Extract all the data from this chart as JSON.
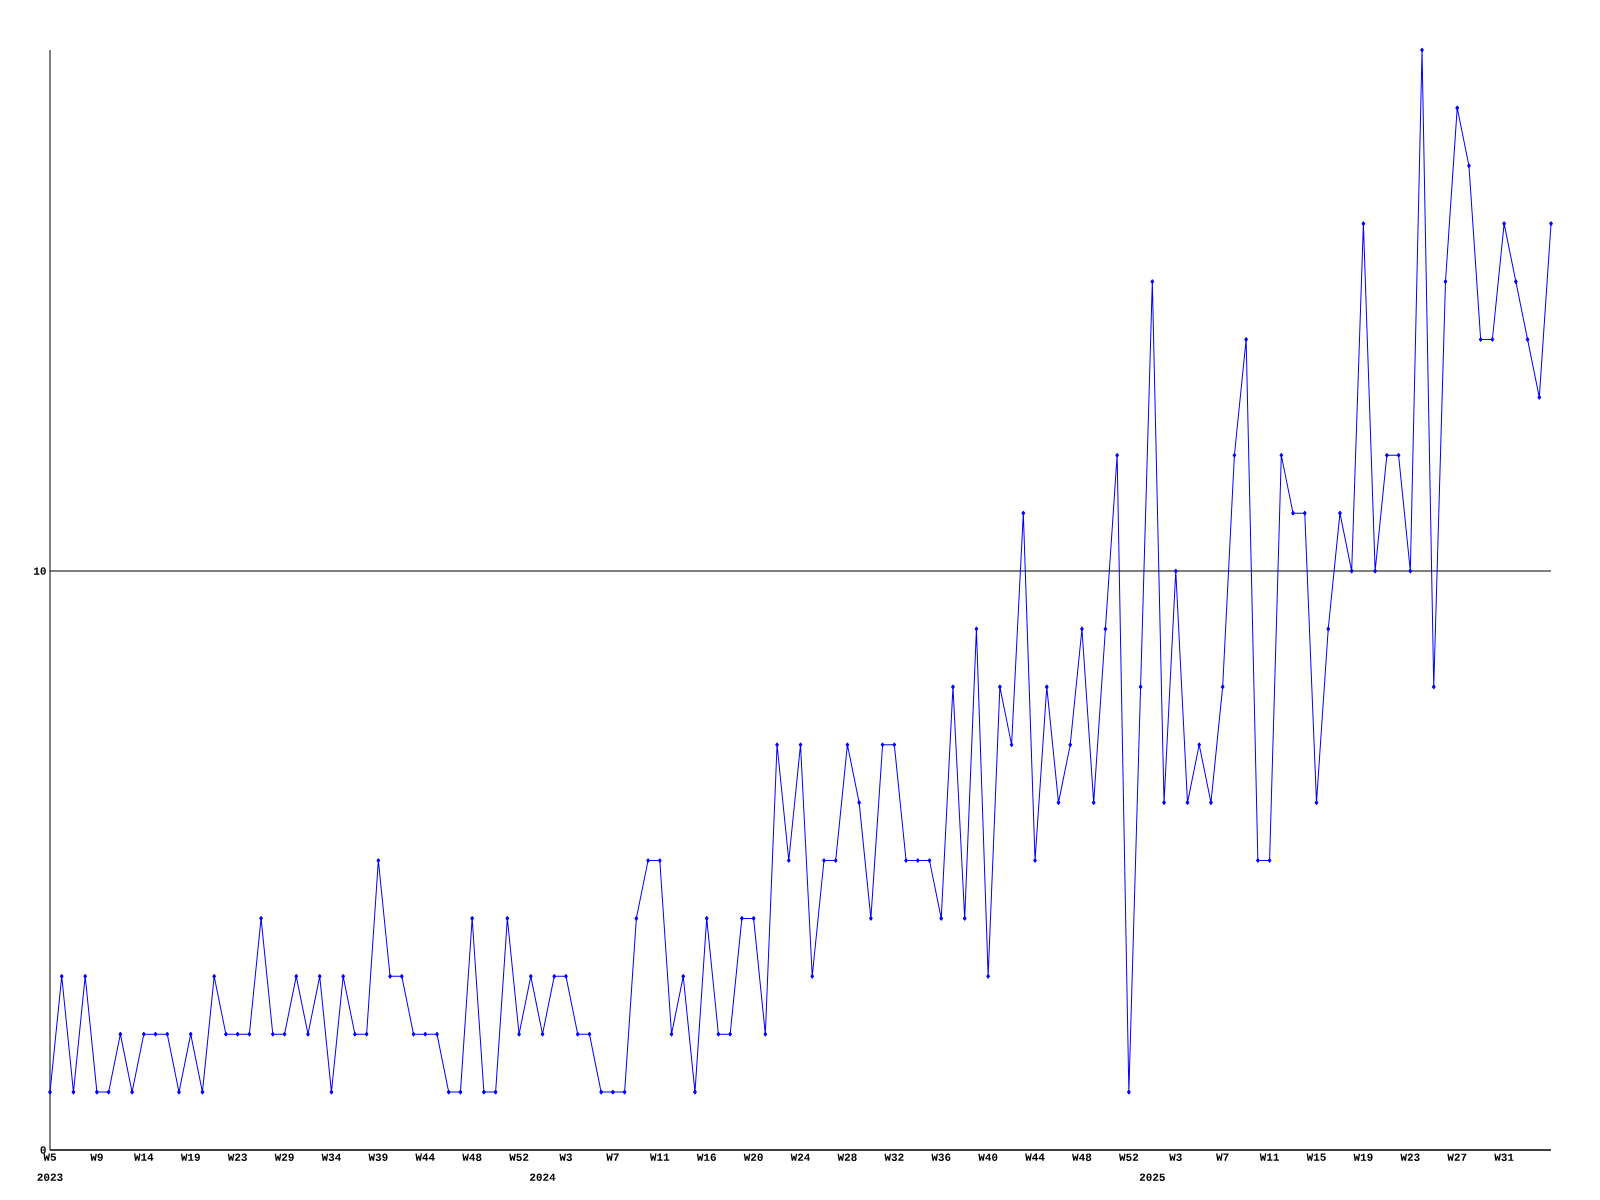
{
  "chart_data": {
    "type": "line",
    "color": "#0000ff",
    "marker": "diamond",
    "line_style": "solid",
    "grid": "y",
    "categories": [
      "W5",
      null,
      null,
      null,
      "W9",
      null,
      null,
      null,
      "W14",
      null,
      null,
      null,
      "W19",
      null,
      null,
      null,
      "W23",
      null,
      null,
      null,
      "W29",
      null,
      null,
      null,
      "W34",
      null,
      null,
      null,
      "W39",
      null,
      null,
      null,
      "W44",
      null,
      null,
      null,
      "W48",
      null,
      null,
      null,
      "W52",
      null,
      null,
      null,
      "W3",
      null,
      null,
      null,
      "W7",
      null,
      null,
      null,
      "W11",
      null,
      null,
      null,
      "W16",
      null,
      null,
      null,
      "W20",
      null,
      null,
      null,
      "W24",
      null,
      null,
      null,
      "W28",
      null,
      null,
      null,
      "W32",
      null,
      null,
      null,
      "W36",
      null,
      null,
      null,
      "W40",
      null,
      null,
      null,
      "W44",
      null,
      null,
      null,
      "W48",
      null,
      null,
      null,
      "W52",
      null,
      null,
      null,
      "W3",
      null,
      null,
      null,
      "W7",
      null,
      null,
      null,
      "W11",
      null,
      null,
      null,
      "W15",
      null,
      null,
      null,
      "W19",
      null,
      null,
      null,
      "W23",
      null,
      null,
      null,
      "W27",
      null,
      null,
      null,
      "W31",
      null,
      null,
      null,
      null
    ],
    "values": [
      1,
      3,
      1,
      3,
      1,
      1,
      2,
      1,
      2,
      2,
      2,
      1,
      2,
      1,
      3,
      2,
      2,
      2,
      4,
      2,
      2,
      3,
      2,
      3,
      1,
      3,
      2,
      2,
      5,
      3,
      3,
      2,
      2,
      2,
      1,
      1,
      4,
      1,
      1,
      4,
      2,
      3,
      2,
      3,
      3,
      2,
      2,
      1,
      1,
      1,
      4,
      5,
      5,
      2,
      3,
      1,
      4,
      2,
      2,
      4,
      4,
      2,
      7,
      5,
      7,
      3,
      5,
      5,
      7,
      6,
      4,
      7,
      7,
      5,
      5,
      5,
      4,
      8,
      4,
      9,
      3,
      8,
      7,
      11,
      5,
      8,
      6,
      7,
      9,
      6,
      9,
      12,
      1,
      8,
      15,
      6,
      10,
      6,
      7,
      6,
      8,
      12,
      14,
      5,
      5,
      12,
      11,
      11,
      6,
      9,
      11,
      10,
      16,
      10,
      12,
      12,
      10,
      19,
      8,
      15,
      18,
      17,
      14,
      14,
      16,
      15,
      14,
      13,
      16
    ],
    "ylim": [
      0,
      19
    ],
    "yticks": [
      0,
      10
    ],
    "annotations": [
      "2023",
      "2024",
      "2025"
    ]
  }
}
